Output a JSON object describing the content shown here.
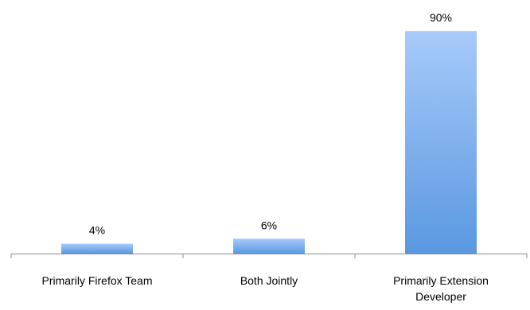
{
  "chart_data": {
    "type": "bar",
    "categories": [
      "Primarily Firefox Team",
      "Both Jointly",
      "Primarily Extension Developer"
    ],
    "category_lines": [
      [
        "Primarily Firefox Team"
      ],
      [
        "Both Jointly"
      ],
      [
        "Primarily Extension",
        "Developer"
      ]
    ],
    "values": [
      4,
      6,
      90
    ],
    "data_labels": [
      "4%",
      "6%",
      "90%"
    ],
    "ylim": [
      0,
      100
    ],
    "y_axis_visible": false,
    "grid": false,
    "legend": "none",
    "colors": {
      "bar_top": "#a7cafa",
      "bar_bottom": "#5a98e0",
      "axis": "#8c8c8c"
    }
  }
}
